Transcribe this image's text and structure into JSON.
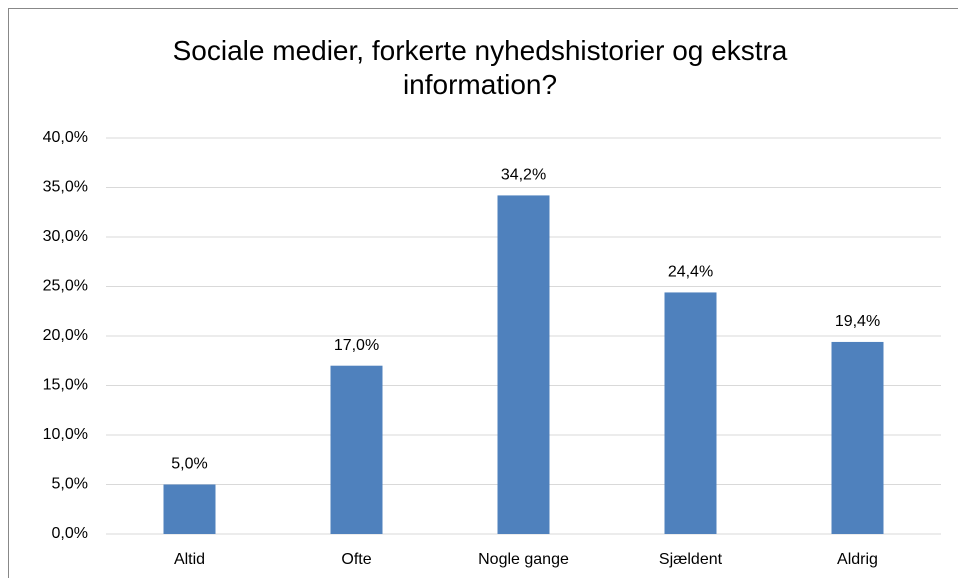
{
  "chart_data": {
    "type": "bar",
    "title": "Sociale medier, forkerte nyhedshistorier og ekstra information?",
    "categories": [
      "Altid",
      "Ofte",
      "Nogle gange",
      "Sjældent",
      "Aldrig"
    ],
    "values": [
      5.0,
      17.0,
      34.2,
      24.4,
      19.4
    ],
    "value_labels": [
      "5,0%",
      "17,0%",
      "34,2%",
      "24,4%",
      "19,4%"
    ],
    "color": "#4f81bd",
    "ylim": [
      0,
      40
    ],
    "yticks": [
      {
        "value": 0,
        "label": "0,0%"
      },
      {
        "value": 5,
        "label": "5,0%"
      },
      {
        "value": 10,
        "label": "10,0%"
      },
      {
        "value": 15,
        "label": "15,0%"
      },
      {
        "value": 20,
        "label": "20,0%"
      },
      {
        "value": 25,
        "label": "25,0%"
      },
      {
        "value": 30,
        "label": "30,0%"
      },
      {
        "value": 35,
        "label": "35,0%"
      },
      {
        "value": 40,
        "label": "40,0%"
      }
    ],
    "grid": true
  }
}
